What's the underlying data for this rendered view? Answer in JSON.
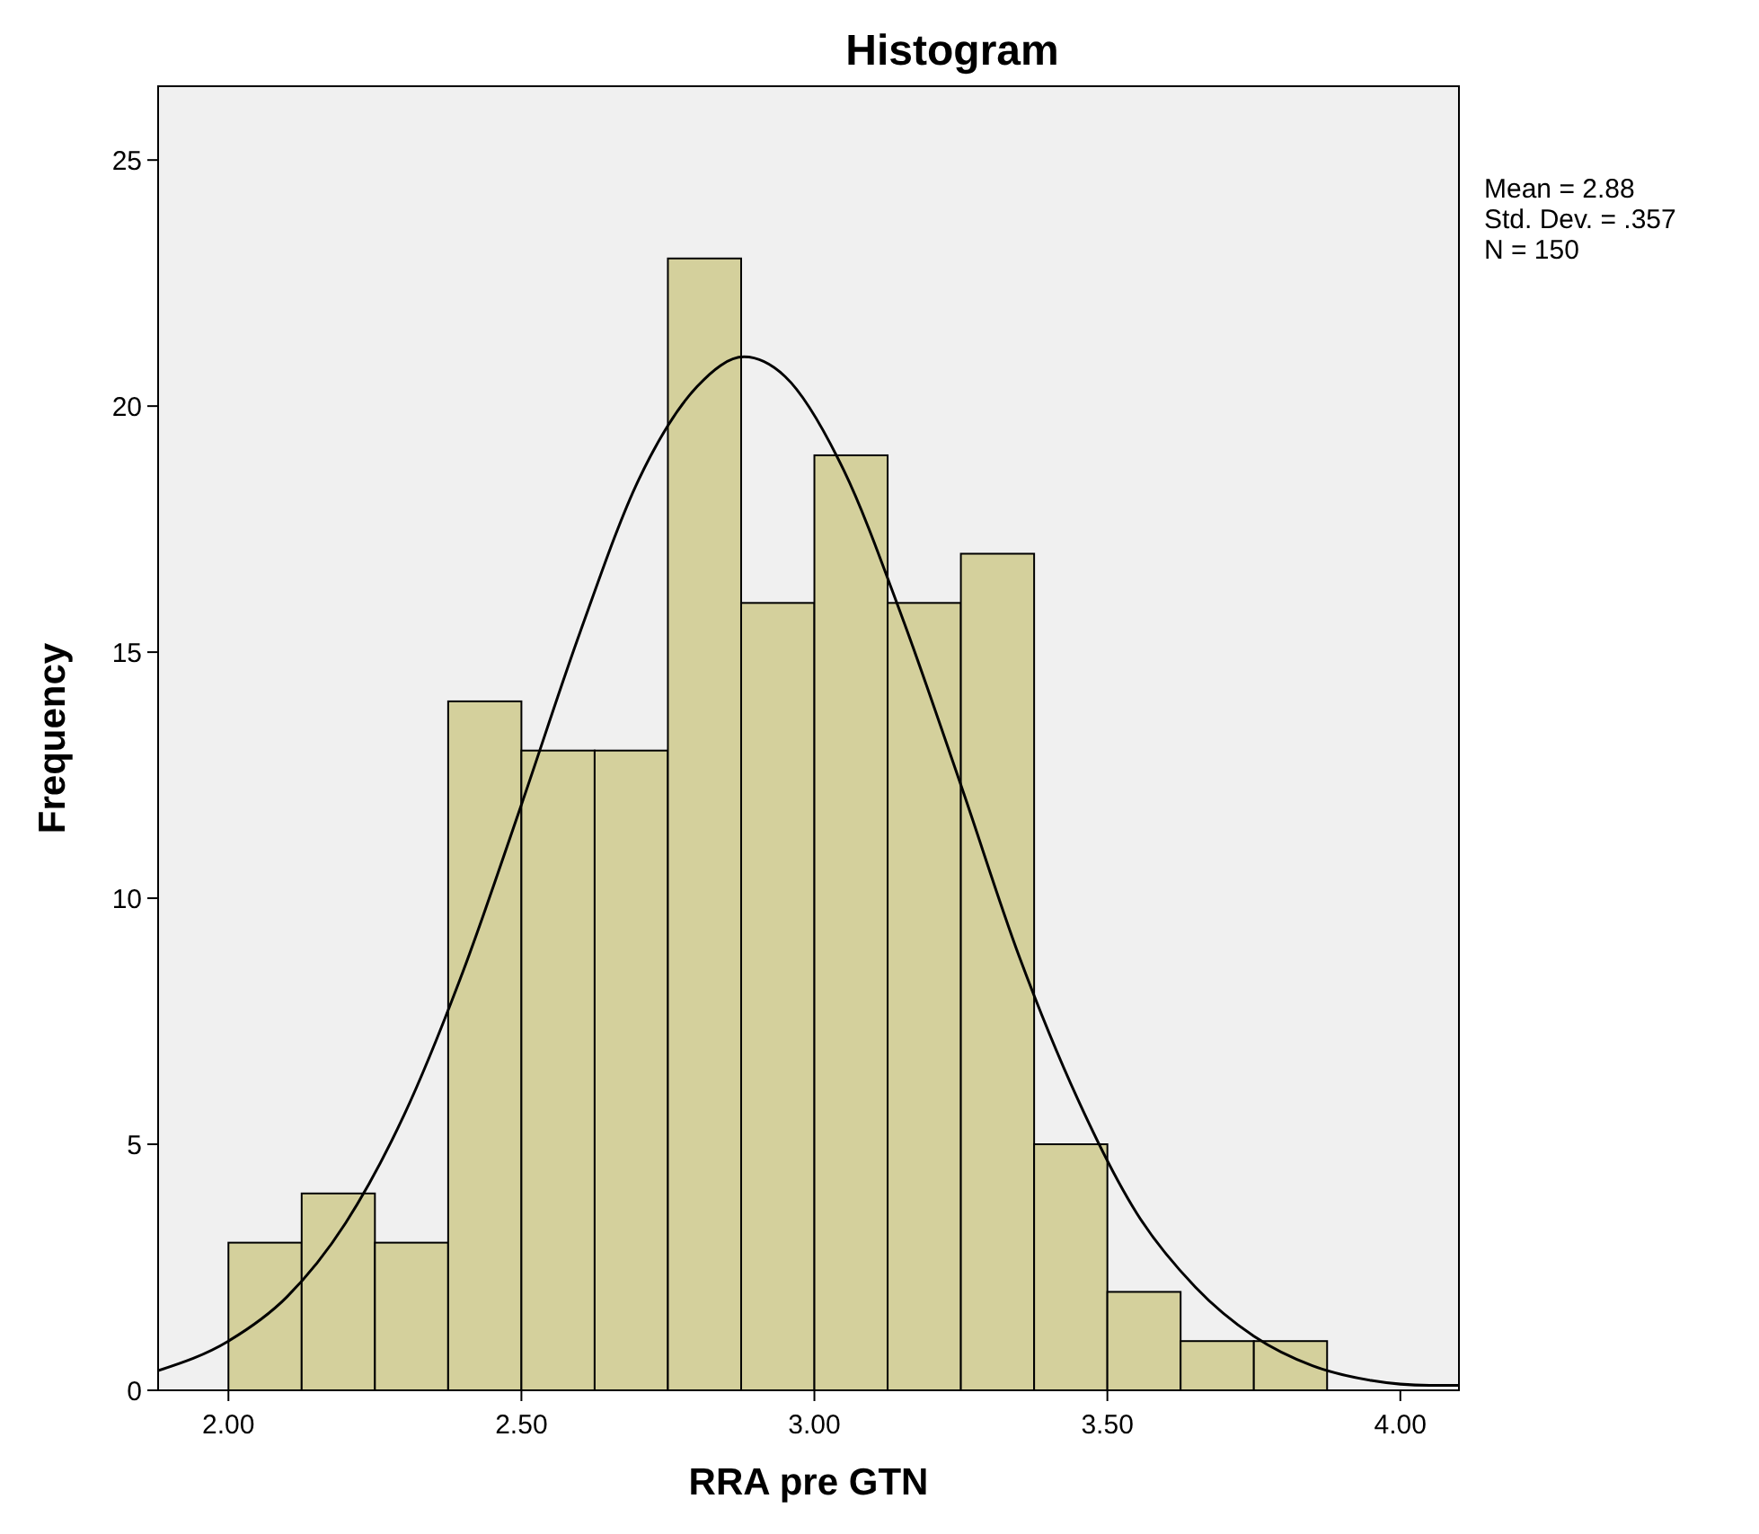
{
  "chart_data": {
    "type": "histogram",
    "title": "Histogram",
    "xlabel": "RRA pre GTN",
    "ylabel": "Frequency",
    "bins": [
      2.0,
      2.125,
      2.25,
      2.375,
      2.5,
      2.625,
      2.75,
      2.875,
      3.0,
      3.125,
      3.25,
      3.375,
      3.5,
      3.625,
      3.75,
      3.875
    ],
    "series": [
      {
        "color": "#d4d09c",
        "values": [
          3,
          4,
          3,
          14,
          13,
          13,
          23,
          16,
          19,
          16,
          17,
          5,
          2,
          1,
          1
        ]
      },
      {
        "type": "line",
        "color": "#000000",
        "x": [
          1.88,
          2.0,
          2.1,
          2.2,
          2.3,
          2.4,
          2.5,
          2.6,
          2.7,
          2.8,
          2.88,
          2.95,
          3.05,
          3.15,
          3.25,
          3.35,
          3.45,
          3.55,
          3.65,
          3.75,
          3.85,
          3.95,
          4.05,
          4.1
        ],
        "values": [
          0.4,
          1.0,
          1.9,
          3.4,
          5.6,
          8.5,
          11.9,
          15.4,
          18.5,
          20.4,
          21.0,
          20.6,
          18.7,
          15.7,
          12.3,
          8.8,
          5.9,
          3.6,
          2.1,
          1.1,
          0.5,
          0.2,
          0.1,
          0.1
        ]
      }
    ],
    "xlim": [
      1.88,
      4.1
    ],
    "xticks": [
      {
        "value": 2,
        "label": "2.00"
      },
      {
        "value": 2.5,
        "label": "2.50"
      },
      {
        "value": 3,
        "label": "3.00"
      },
      {
        "value": 3.5,
        "label": "3.50"
      },
      {
        "value": 4,
        "label": "4.00"
      }
    ],
    "ylim": [
      0,
      26.5
    ],
    "yticks": [
      0,
      5,
      10,
      15,
      20,
      25
    ],
    "grid": false,
    "annotations": [
      "Mean = 2.88",
      "Std. Dev. = .357",
      "N = 150"
    ]
  }
}
